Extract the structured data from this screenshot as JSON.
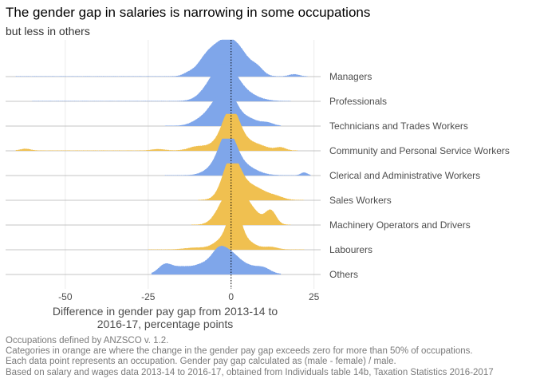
{
  "title": "The gender gap in salaries is narrowing in some occupations",
  "subtitle": "but less in others",
  "caption": [
    "Occupations defined by ANZSCO v. 1.2.",
    "Categories in orange are where the change in the gender pay gap exceeds zero for more than 50% of occupations.",
    "Each data point represents an occupation. Gender pay gap calculated as (male - female) / male.",
    "Based on salary and wages data 2013-14 to 2016-17, obtained from Individuals table 14b, Taxation Statistics 2016-2017"
  ],
  "colors": {
    "blue": "#7fa6ea",
    "orange": "#f0c050",
    "baseline": "#b3b3b3",
    "grid": "#ebebeb",
    "zero_line": "#000000"
  },
  "chart_data": {
    "type": "ridgeline",
    "xlabel": "Difference in gender pay gap from 2013-14 to 2016-17, percentage points",
    "xlim": [
      -68,
      27
    ],
    "xticks": [
      -50,
      -25,
      0,
      25
    ],
    "reference_line": 0,
    "series": [
      {
        "name": "Managers",
        "color": "blue",
        "range": [
          -65,
          23
        ],
        "peaks": [
          [
            -2,
            4.5,
            1.0
          ],
          [
            -8,
            2.5,
            0.22
          ],
          [
            3,
            3,
            0.28
          ],
          [
            8,
            1.8,
            0.18
          ],
          [
            -13,
            1.5,
            0.06
          ],
          [
            19,
            1.5,
            0.06
          ]
        ]
      },
      {
        "name": "Professionals",
        "color": "blue",
        "range": [
          -60,
          18
        ],
        "peaks": [
          [
            -2,
            3.5,
            1.0
          ],
          [
            -7,
            3,
            0.2
          ],
          [
            4,
            4,
            0.2
          ]
        ]
      },
      {
        "name": "Technicians and Trades Workers",
        "color": "blue",
        "range": [
          -20,
          15
        ],
        "peaks": [
          [
            -3,
            3.5,
            0.85
          ],
          [
            0,
            2,
            0.3
          ],
          [
            5,
            3,
            0.2
          ],
          [
            11,
            1.8,
            0.08
          ],
          [
            -10,
            2.5,
            0.1
          ]
        ]
      },
      {
        "name": "Community and Personal Service Workers",
        "color": "orange",
        "range": [
          -65,
          20
        ],
        "peaks": [
          [
            0,
            2.5,
            1.0
          ],
          [
            -3,
            5,
            0.2
          ],
          [
            6,
            4,
            0.2
          ],
          [
            -11,
            2,
            0.06
          ],
          [
            -22,
            2,
            0.04
          ],
          [
            15,
            1.5,
            0.08
          ],
          [
            -62,
            1.5,
            0.05
          ]
        ]
      },
      {
        "name": "Clerical and Administrative Workers",
        "color": "blue",
        "range": [
          -20,
          24
        ],
        "peaks": [
          [
            -1,
            2.5,
            1.0
          ],
          [
            3,
            4,
            0.3
          ],
          [
            -5,
            3,
            0.2
          ],
          [
            22,
            1,
            0.08
          ]
        ]
      },
      {
        "name": "Sales Workers",
        "color": "orange",
        "range": [
          -10,
          22
        ],
        "peaks": [
          [
            0,
            2.5,
            1.0
          ],
          [
            3,
            4,
            0.3
          ],
          [
            8,
            4,
            0.22
          ],
          [
            14,
            2,
            0.05
          ]
        ]
      },
      {
        "name": "Machinery Operators and Drivers",
        "color": "orange",
        "range": [
          -12,
          18
        ],
        "peaks": [
          [
            1,
            3,
            1.0
          ],
          [
            6,
            3,
            0.35
          ],
          [
            12,
            1.6,
            0.38
          ],
          [
            -3,
            2.5,
            0.25
          ]
        ]
      },
      {
        "name": "Labourers",
        "color": "orange",
        "range": [
          -25,
          22
        ],
        "peaks": [
          [
            1,
            1.8,
            1.0
          ],
          [
            -2,
            3,
            0.3
          ],
          [
            4,
            3,
            0.25
          ],
          [
            -11,
            3,
            0.05
          ],
          [
            12,
            2,
            0.07
          ]
        ]
      },
      {
        "name": "Others",
        "color": "blue",
        "range": [
          -24,
          15
        ],
        "peaks": [
          [
            -1,
            3,
            0.55
          ],
          [
            -4,
            2,
            0.3
          ],
          [
            -8,
            3,
            0.28
          ],
          [
            -15,
            3,
            0.2
          ],
          [
            -20,
            2,
            0.25
          ],
          [
            5,
            4,
            0.22
          ],
          [
            10,
            2,
            0.1
          ]
        ]
      }
    ]
  }
}
